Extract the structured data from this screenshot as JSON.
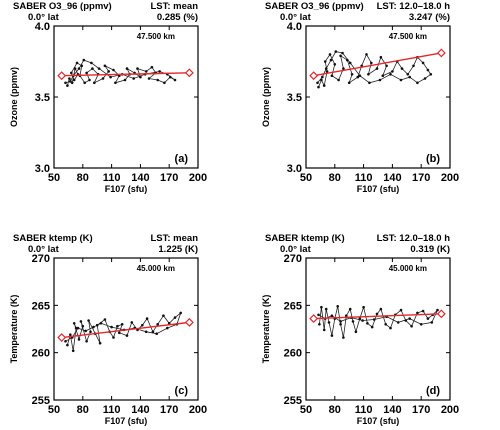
{
  "chart_data": [
    {
      "type": "line",
      "title": "SABER O3_96 (ppmv)",
      "lat": "0.0° lat",
      "lst": "LST: mean",
      "pct": "0.285 (%)",
      "altitude": "47.500 km",
      "panel_label": "(a)",
      "xlabel": "F107 (sfu)",
      "ylabel": "Ozone (ppmv)",
      "xlim": [
        50,
        200
      ],
      "ylim": [
        3.0,
        4.0
      ],
      "xticks": [
        50,
        80,
        110,
        140,
        170,
        200
      ],
      "yticks": [
        3.0,
        3.5,
        4.0
      ],
      "ytick_labels": [
        "3.0",
        "3.5",
        "4.0"
      ],
      "series": [
        {
          "type": "line",
          "color": "#222222",
          "points": [
            [
              64,
              3.58
            ],
            [
              66,
              3.63
            ],
            [
              69,
              3.6
            ],
            [
              72,
              3.7
            ],
            [
              75,
              3.66
            ],
            [
              71,
              3.62
            ],
            [
              68,
              3.67
            ],
            [
              74,
              3.74
            ],
            [
              79,
              3.72
            ],
            [
              77,
              3.65
            ],
            [
              82,
              3.6
            ],
            [
              87,
              3.62
            ],
            [
              84,
              3.67
            ],
            [
              90,
              3.7
            ],
            [
              96,
              3.66
            ],
            [
              92,
              3.6
            ],
            [
              101,
              3.63
            ],
            [
              107,
              3.68
            ],
            [
              103,
              3.72
            ],
            [
              112,
              3.69
            ],
            [
              118,
              3.65
            ],
            [
              114,
              3.6
            ],
            [
              124,
              3.62
            ],
            [
              129,
              3.66
            ],
            [
              126,
              3.7
            ],
            [
              134,
              3.67
            ],
            [
              140,
              3.64
            ],
            [
              137,
              3.7
            ],
            [
              146,
              3.68
            ],
            [
              152,
              3.71
            ],
            [
              156,
              3.67
            ],
            [
              149,
              3.63
            ],
            [
              158,
              3.62
            ],
            [
              165,
              3.6
            ],
            [
              171,
              3.64
            ],
            [
              176,
              3.62
            ],
            [
              168,
              3.66
            ],
            [
              160,
              3.68
            ],
            [
              145,
              3.66
            ],
            [
              133,
              3.63
            ],
            [
              121,
              3.66
            ],
            [
              109,
              3.64
            ],
            [
              97,
              3.7
            ],
            [
              89,
              3.74
            ],
            [
              81,
              3.76
            ],
            [
              76,
              3.7
            ],
            [
              70,
              3.65
            ],
            [
              67,
              3.61
            ],
            [
              62,
              3.6
            ]
          ]
        },
        {
          "type": "trend",
          "color": "#e8262a",
          "x": [
            58,
            191
          ],
          "y": [
            3.65,
            3.67
          ]
        }
      ]
    },
    {
      "type": "line",
      "title": "SABER O3_96 (ppmv)",
      "lat": "0.0° lat",
      "lst": "LST: 12.0–18.0 h",
      "pct": "3.247 (%)",
      "altitude": "47.500 km",
      "panel_label": "(b)",
      "xlabel": "F107 (sfu)",
      "ylabel": "Ozone (ppmv)",
      "xlim": [
        50,
        200
      ],
      "ylim": [
        3.0,
        4.0
      ],
      "xticks": [
        50,
        80,
        110,
        140,
        170,
        200
      ],
      "yticks": [
        3.0,
        3.5,
        4.0
      ],
      "ytick_labels": [
        "3.0",
        "3.5",
        "4.0"
      ],
      "series": [
        {
          "type": "line",
          "color": "#222222",
          "points": [
            [
              63,
              3.57
            ],
            [
              66,
              3.62
            ],
            [
              69,
              3.58
            ],
            [
              72,
              3.68
            ],
            [
              70,
              3.75
            ],
            [
              75,
              3.8
            ],
            [
              80,
              3.73
            ],
            [
              77,
              3.65
            ],
            [
              84,
              3.62
            ],
            [
              89,
              3.7
            ],
            [
              86,
              3.79
            ],
            [
              93,
              3.76
            ],
            [
              98,
              3.66
            ],
            [
              95,
              3.6
            ],
            [
              104,
              3.64
            ],
            [
              108,
              3.72
            ],
            [
              113,
              3.8
            ],
            [
              118,
              3.74
            ],
            [
              115,
              3.66
            ],
            [
              124,
              3.7
            ],
            [
              128,
              3.78
            ],
            [
              134,
              3.72
            ],
            [
              130,
              3.65
            ],
            [
              140,
              3.68
            ],
            [
              145,
              3.75
            ],
            [
              150,
              3.7
            ],
            [
              156,
              3.66
            ],
            [
              162,
              3.72
            ],
            [
              166,
              3.78
            ],
            [
              172,
              3.74
            ],
            [
              177,
              3.69
            ],
            [
              180,
              3.66
            ],
            [
              174,
              3.63
            ],
            [
              166,
              3.6
            ],
            [
              158,
              3.64
            ],
            [
              149,
              3.62
            ],
            [
              138,
              3.66
            ],
            [
              127,
              3.62
            ],
            [
              116,
              3.6
            ],
            [
              106,
              3.65
            ],
            [
              96,
              3.74
            ],
            [
              88,
              3.81
            ],
            [
              81,
              3.82
            ],
            [
              76,
              3.76
            ],
            [
              71,
              3.7
            ],
            [
              67,
              3.64
            ],
            [
              62,
              3.6
            ]
          ]
        },
        {
          "type": "trend",
          "color": "#e8262a",
          "x": [
            58,
            191
          ],
          "y": [
            3.65,
            3.81
          ]
        }
      ]
    },
    {
      "type": "line",
      "title": "SABER ktemp (K)",
      "lat": "0.0° lat",
      "lst": "LST: mean",
      "pct": "1.225 (K)",
      "altitude": "45.000 km",
      "panel_label": "(c)",
      "xlabel": "F107 (sfu)",
      "ylabel": "Temperature (K)",
      "xlim": [
        50,
        200
      ],
      "ylim": [
        255,
        270
      ],
      "xticks": [
        50,
        80,
        110,
        140,
        170,
        200
      ],
      "yticks": [
        255,
        260,
        265,
        270
      ],
      "ytick_labels": [
        "255",
        "260",
        "265",
        "270"
      ],
      "series": [
        {
          "type": "line",
          "color": "#222222",
          "points": [
            [
              64,
              260.8
            ],
            [
              67,
              261.9
            ],
            [
              70,
              260.2
            ],
            [
              73,
              262.6
            ],
            [
              71,
              263.1
            ],
            [
              76,
              261.4
            ],
            [
              80,
              262.8
            ],
            [
              78,
              263.3
            ],
            [
              84,
              261.2
            ],
            [
              88,
              262.2
            ],
            [
              86,
              263.4
            ],
            [
              93,
              262.0
            ],
            [
              98,
              261.0
            ],
            [
              95,
              262.9
            ],
            [
              103,
              263.5
            ],
            [
              108,
              262.2
            ],
            [
              112,
              261.6
            ],
            [
              116,
              262.8
            ],
            [
              121,
              263.0
            ],
            [
              118,
              262.1
            ],
            [
              126,
              261.8
            ],
            [
              131,
              263.2
            ],
            [
              137,
              262.4
            ],
            [
              142,
              262.9
            ],
            [
              147,
              263.6
            ],
            [
              153,
              262.2
            ],
            [
              158,
              263.0
            ],
            [
              164,
              263.9
            ],
            [
              170,
              263.1
            ],
            [
              176,
              263.7
            ],
            [
              182,
              264.2
            ],
            [
              178,
              263.0
            ],
            [
              168,
              262.6
            ],
            [
              157,
              262.0
            ],
            [
              146,
              262.2
            ],
            [
              134,
              262.6
            ],
            [
              123,
              262.4
            ],
            [
              110,
              262.7
            ],
            [
              99,
              263.1
            ],
            [
              91,
              262.7
            ],
            [
              83,
              262.3
            ],
            [
              75,
              262.6
            ],
            [
              69,
              261.6
            ],
            [
              62,
              261.2
            ]
          ]
        },
        {
          "type": "trend",
          "color": "#e8262a",
          "x": [
            58,
            191
          ],
          "y": [
            261.6,
            263.2
          ]
        }
      ]
    },
    {
      "type": "line",
      "title": "SABER ktemp (K)",
      "lat": "0.0° lat",
      "lst": "LST: 12.0–18.0 h",
      "pct": "0.319 (K)",
      "altitude": "45.000 km",
      "panel_label": "(d)",
      "xlabel": "F107 (sfu)",
      "ylabel": "Temperature (K)",
      "xlim": [
        50,
        200
      ],
      "ylim": [
        255,
        270
      ],
      "xticks": [
        50,
        80,
        110,
        140,
        170,
        200
      ],
      "yticks": [
        255,
        260,
        265,
        270
      ],
      "ytick_labels": [
        "255",
        "260",
        "265",
        "270"
      ],
      "series": [
        {
          "type": "line",
          "color": "#222222",
          "points": [
            [
              64,
              263.0
            ],
            [
              66,
              264.8
            ],
            [
              69,
              262.4
            ],
            [
              71,
              264.6
            ],
            [
              74,
              263.2
            ],
            [
              77,
              261.8
            ],
            [
              80,
              263.6
            ],
            [
              83,
              264.9
            ],
            [
              86,
              263.0
            ],
            [
              89,
              261.6
            ],
            [
              92,
              263.9
            ],
            [
              96,
              264.6
            ],
            [
              99,
              263.3
            ],
            [
              102,
              262.2
            ],
            [
              106,
              263.6
            ],
            [
              110,
              264.8
            ],
            [
              114,
              263.1
            ],
            [
              119,
              262.7
            ],
            [
              124,
              264.1
            ],
            [
              128,
              264.6
            ],
            [
              133,
              263.0
            ],
            [
              138,
              262.6
            ],
            [
              143,
              264.0
            ],
            [
              149,
              264.5
            ],
            [
              154,
              263.4
            ],
            [
              160,
              262.8
            ],
            [
              166,
              264.2
            ],
            [
              172,
              264.4
            ],
            [
              177,
              263.6
            ],
            [
              182,
              264.0
            ],
            [
              187,
              264.5
            ],
            [
              181,
              263.2
            ],
            [
              170,
              263.0
            ],
            [
              158,
              263.6
            ],
            [
              146,
              263.2
            ],
            [
              134,
              263.8
            ],
            [
              121,
              263.5
            ],
            [
              109,
              263.4
            ],
            [
              97,
              263.7
            ],
            [
              86,
              263.3
            ],
            [
              77,
              263.9
            ],
            [
              70,
              263.6
            ],
            [
              63,
              264.0
            ]
          ]
        },
        {
          "type": "trend",
          "color": "#e8262a",
          "x": [
            58,
            191
          ],
          "y": [
            263.6,
            264.1
          ]
        }
      ]
    }
  ]
}
